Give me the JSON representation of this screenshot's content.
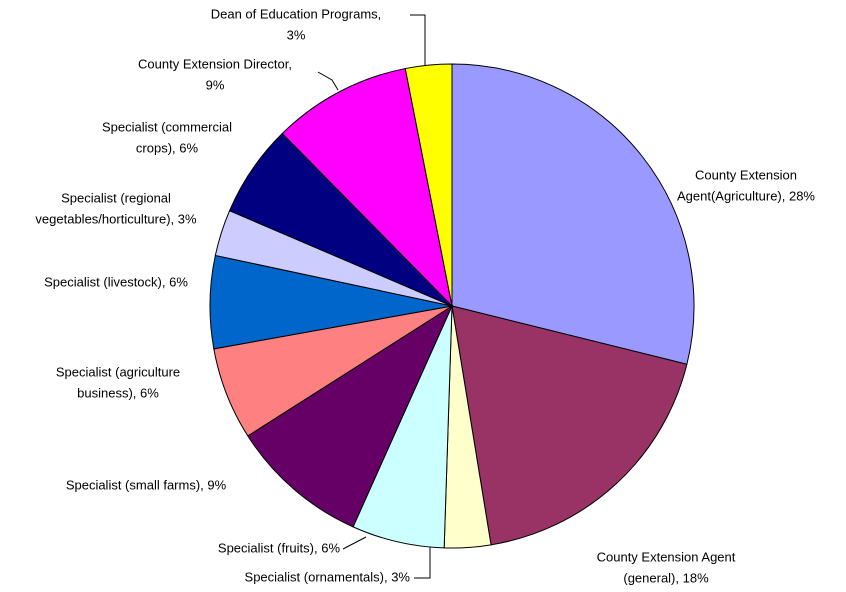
{
  "chart_data": {
    "type": "pie",
    "labels": [
      [
        "County Extension",
        "Agent(Agriculture), 28%"
      ],
      [
        "County Extension Agent",
        "(general), 18%"
      ],
      [
        "Specialist (ornamentals), 3%"
      ],
      [
        "Specialist (fruits), 6%"
      ],
      [
        "Specialist (small farms), 9%"
      ],
      [
        "Specialist (agriculture",
        "business), 6%"
      ],
      [
        "Specialist (livestock), 6%"
      ],
      [
        "Specialist (regional",
        "vegetables/horticulture), 3%"
      ],
      [
        "Specialist (commercial",
        "crops), 6%"
      ],
      [
        "County Extension Director,",
        "9%"
      ],
      [
        "Dean of Education Programs,",
        "3%"
      ]
    ],
    "values": [
      28,
      18,
      3,
      6,
      9,
      6,
      6,
      3,
      6,
      9,
      3
    ],
    "colors": [
      "#9999ff",
      "#993366",
      "#ffffcc",
      "#ccffff",
      "#660066",
      "#ff8080",
      "#0066cc",
      "#ccccff",
      "#000080",
      "#ff00ff",
      "#ffff00"
    ]
  }
}
